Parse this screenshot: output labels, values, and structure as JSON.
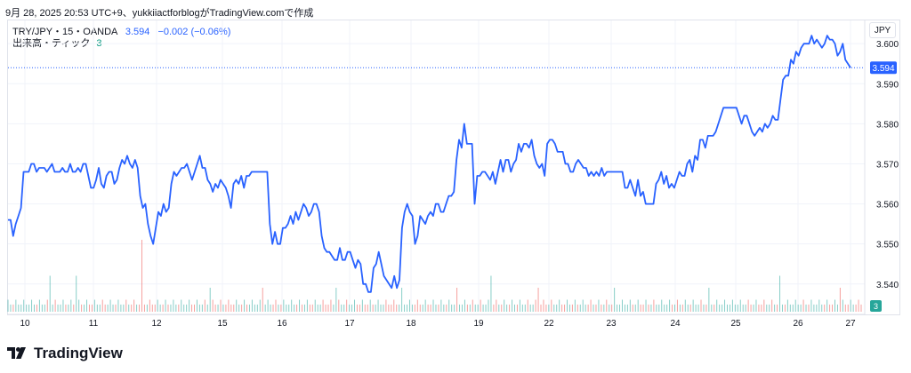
{
  "caption": "9月 28, 2025 20:53 UTC+9、yukkiiactforblogがTradingView.comで作成",
  "legend": {
    "symbol": "TRY/JPY・15・OANDA",
    "last": "3.594",
    "change": "−0.002 (−0.06%)",
    "volume_label": "出来高・ティック",
    "volume_value": "3"
  },
  "currency_button": "JPY",
  "brand": "TradingView",
  "chart_data": {
    "type": "line",
    "price_axis_labels": [
      "3.600",
      "3.590",
      "3.580",
      "3.570",
      "3.560",
      "3.550",
      "3.540"
    ],
    "ylim": [
      3.5333,
      3.6058
    ],
    "x_tick_labels": [
      "10",
      "11",
      "12",
      "15",
      "16",
      "17",
      "18",
      "19",
      "22",
      "23",
      "24",
      "25",
      "26",
      "27"
    ],
    "last_price_label": "3.594",
    "last_volume_label": "3",
    "series": [
      {
        "color": "#2962ff",
        "values": [
          3.556,
          3.556,
          3.552,
          3.555,
          3.557,
          3.559,
          3.568,
          3.568,
          3.568,
          3.57,
          3.57,
          3.568,
          3.569,
          3.569,
          3.569,
          3.568,
          3.569,
          3.57,
          3.568,
          3.568,
          3.568,
          3.569,
          3.568,
          3.568,
          3.57,
          3.568,
          3.568,
          3.569,
          3.568,
          3.57,
          3.57,
          3.567,
          3.564,
          3.564,
          3.566,
          3.569,
          3.565,
          3.564,
          3.567,
          3.568,
          3.568,
          3.565,
          3.566,
          3.569,
          3.571,
          3.57,
          3.572,
          3.57,
          3.569,
          3.571,
          3.569,
          3.562,
          3.559,
          3.56,
          3.555,
          3.552,
          3.55,
          3.554,
          3.558,
          3.557,
          3.56,
          3.558,
          3.559,
          3.565,
          3.568,
          3.567,
          3.568,
          3.569,
          3.569,
          3.57,
          3.568,
          3.566,
          3.568,
          3.57,
          3.572,
          3.569,
          3.569,
          3.566,
          3.565,
          3.563,
          3.565,
          3.564,
          3.566,
          3.565,
          3.564,
          3.562,
          3.559,
          3.565,
          3.566,
          3.565,
          3.567,
          3.564,
          3.567,
          3.567,
          3.568,
          3.568,
          3.568,
          3.568,
          3.568,
          3.568,
          3.568,
          3.555,
          3.55,
          3.553,
          3.55,
          3.55,
          3.554,
          3.554,
          3.555,
          3.557,
          3.555,
          3.558,
          3.556,
          3.558,
          3.56,
          3.559,
          3.557,
          3.558,
          3.56,
          3.56,
          3.558,
          3.552,
          3.549,
          3.548,
          3.548,
          3.547,
          3.546,
          3.546,
          3.549,
          3.546,
          3.546,
          3.548,
          3.548,
          3.546,
          3.544,
          3.546,
          3.545,
          3.54,
          3.54,
          3.538,
          3.538,
          3.544,
          3.545,
          3.548,
          3.545,
          3.542,
          3.541,
          3.54,
          3.539,
          3.542,
          3.539,
          3.541,
          3.554,
          3.558,
          3.56,
          3.558,
          3.557,
          3.55,
          3.552,
          3.557,
          3.556,
          3.555,
          3.557,
          3.558,
          3.557,
          3.56,
          3.56,
          3.558,
          3.558,
          3.56,
          3.562,
          3.562,
          3.563,
          3.571,
          3.576,
          3.574,
          3.58,
          3.575,
          3.575,
          3.575,
          3.56,
          3.567,
          3.567,
          3.568,
          3.568,
          3.567,
          3.566,
          3.568,
          3.565,
          3.568,
          3.571,
          3.568,
          3.571,
          3.571,
          3.568,
          3.57,
          3.571,
          3.575,
          3.573,
          3.575,
          3.575,
          3.574,
          3.576,
          3.572,
          3.57,
          3.569,
          3.57,
          3.567,
          3.575,
          3.576,
          3.576,
          3.575,
          3.573,
          3.573,
          3.573,
          3.57,
          3.57,
          3.568,
          3.568,
          3.57,
          3.571,
          3.57,
          3.569,
          3.569,
          3.567,
          3.568,
          3.567,
          3.568,
          3.567,
          3.569,
          3.567,
          3.568,
          3.568,
          3.568,
          3.568,
          3.568,
          3.568,
          3.568,
          3.564,
          3.564,
          3.566,
          3.564,
          3.562,
          3.566,
          3.562,
          3.563,
          3.56,
          3.56,
          3.56,
          3.56,
          3.565,
          3.566,
          3.568,
          3.565,
          3.567,
          3.564,
          3.565,
          3.564,
          3.566,
          3.568,
          3.567,
          3.567,
          3.57,
          3.571,
          3.568,
          3.572,
          3.571,
          3.576,
          3.576,
          3.574,
          3.577,
          3.577,
          3.577,
          3.578,
          3.58,
          3.582,
          3.584,
          3.584,
          3.584,
          3.584,
          3.584,
          3.584,
          3.582,
          3.58,
          3.582,
          3.582,
          3.58,
          3.578,
          3.577,
          3.578,
          3.579,
          3.578,
          3.58,
          3.579,
          3.58,
          3.582,
          3.581,
          3.581,
          3.586,
          3.591,
          3.592,
          3.592,
          3.596,
          3.595,
          3.598,
          3.597,
          3.599,
          3.6,
          3.6,
          3.6,
          3.602,
          3.6,
          3.601,
          3.6,
          3.599,
          3.6,
          3.602,
          3.601,
          3.601,
          3.6,
          3.597,
          3.598,
          3.6,
          3.596,
          3.595,
          3.594
        ]
      }
    ],
    "volume": {
      "up_color": "#26a69a",
      "down_color": "#ef5350",
      "spikes": [
        {
          "fraction": 0.05,
          "value": 3,
          "dir": "up"
        },
        {
          "fraction": 0.08,
          "value": 3,
          "dir": "up"
        },
        {
          "fraction": 0.157,
          "value": 6,
          "dir": "down"
        },
        {
          "fraction": 0.237,
          "value": 2,
          "dir": "up"
        },
        {
          "fraction": 0.297,
          "value": 2,
          "dir": "down"
        },
        {
          "fraction": 0.385,
          "value": 2,
          "dir": "up"
        },
        {
          "fraction": 0.46,
          "value": 2,
          "dir": "up"
        },
        {
          "fraction": 0.525,
          "value": 2,
          "dir": "down"
        },
        {
          "fraction": 0.565,
          "value": 3,
          "dir": "up"
        },
        {
          "fraction": 0.62,
          "value": 2,
          "dir": "down"
        },
        {
          "fraction": 0.71,
          "value": 2,
          "dir": "up"
        },
        {
          "fraction": 0.82,
          "value": 2,
          "dir": "up"
        },
        {
          "fraction": 0.905,
          "value": 3,
          "dir": "up"
        },
        {
          "fraction": 0.975,
          "value": 2,
          "dir": "down"
        }
      ]
    },
    "grid": true
  }
}
